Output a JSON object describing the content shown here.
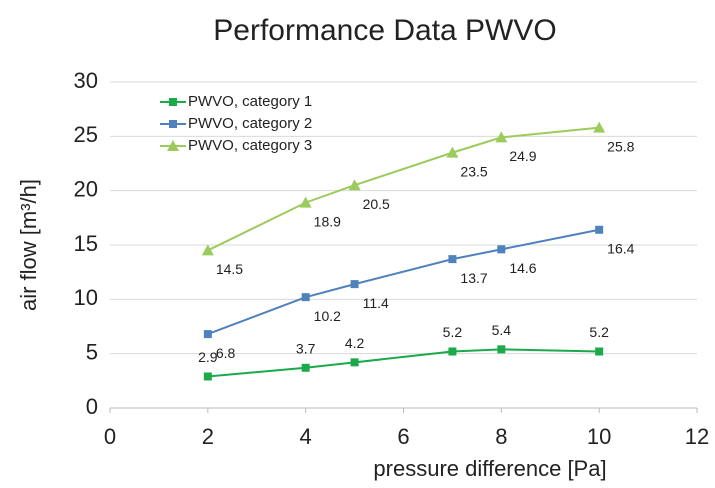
{
  "chart_data": {
    "type": "line",
    "title": "Performance Data PWVO",
    "x_label": "pressure difference [Pa]",
    "y_label": "air flow [m³/h]",
    "x": [
      2,
      4,
      5,
      7,
      8,
      10
    ],
    "series": [
      {
        "name": "PWVO, category 1",
        "color": "#1aaa4a",
        "marker": "square",
        "label_position": "above",
        "values": [
          2.9,
          3.7,
          4.2,
          5.2,
          5.4,
          5.2
        ]
      },
      {
        "name": "PWVO, category 2",
        "color": "#4f81bd",
        "marker": "square",
        "label_position": "below-right",
        "values": [
          6.8,
          10.2,
          11.4,
          13.7,
          14.6,
          16.4
        ]
      },
      {
        "name": "PWVO, category 3",
        "color": "#9bcb5a",
        "marker": "triangle",
        "label_position": "below-right",
        "values": [
          14.5,
          18.9,
          20.5,
          23.5,
          24.9,
          25.8
        ]
      }
    ],
    "xlim": [
      0,
      12
    ],
    "xticks": [
      0,
      2,
      4,
      6,
      8,
      10,
      12
    ],
    "ylim": [
      0,
      30
    ],
    "yticks": [
      0,
      5,
      10,
      15,
      20,
      25,
      30
    ],
    "grid": true,
    "legend": "top-left"
  }
}
